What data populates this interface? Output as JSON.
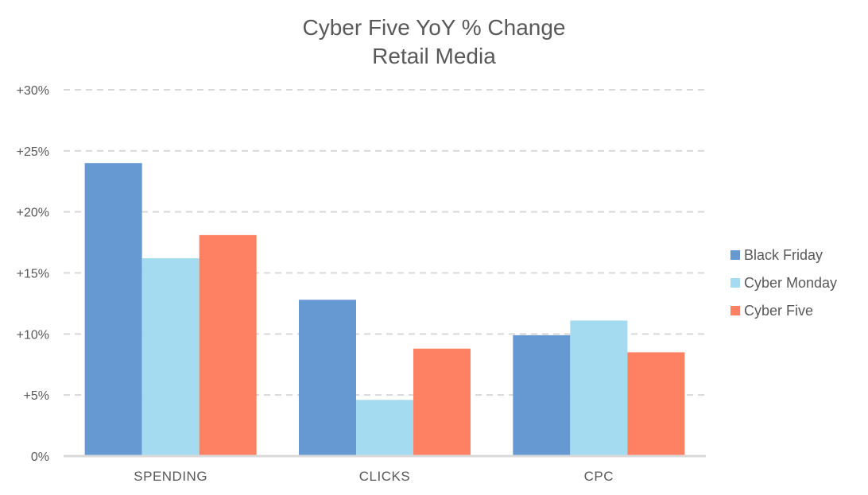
{
  "chart_data": {
    "type": "bar",
    "title": "Cyber Five YoY % Change",
    "subtitle": "Retail Media",
    "categories": [
      "SPENDING",
      "CLICKS",
      "CPC"
    ],
    "series": [
      {
        "name": "Black Friday",
        "color": "#6699D2",
        "values": [
          24.0,
          12.8,
          9.9
        ]
      },
      {
        "name": "Cyber Monday",
        "color": "#A5DBF0",
        "values": [
          16.2,
          4.6,
          11.1
        ]
      },
      {
        "name": "Cyber Five",
        "color": "#FF8164",
        "values": [
          18.1,
          8.8,
          8.5
        ]
      }
    ],
    "ylim": [
      0,
      30
    ],
    "yticks": [
      {
        "value": 0,
        "label": "0%"
      },
      {
        "value": 5,
        "label": "+5%"
      },
      {
        "value": 10,
        "label": "+10%"
      },
      {
        "value": 15,
        "label": "+15%"
      },
      {
        "value": 20,
        "label": "+20%"
      },
      {
        "value": 25,
        "label": "+25%"
      },
      {
        "value": 30,
        "label": "+30%"
      }
    ],
    "grid": true,
    "grid_style": "dashed",
    "legend_position": "right"
  }
}
